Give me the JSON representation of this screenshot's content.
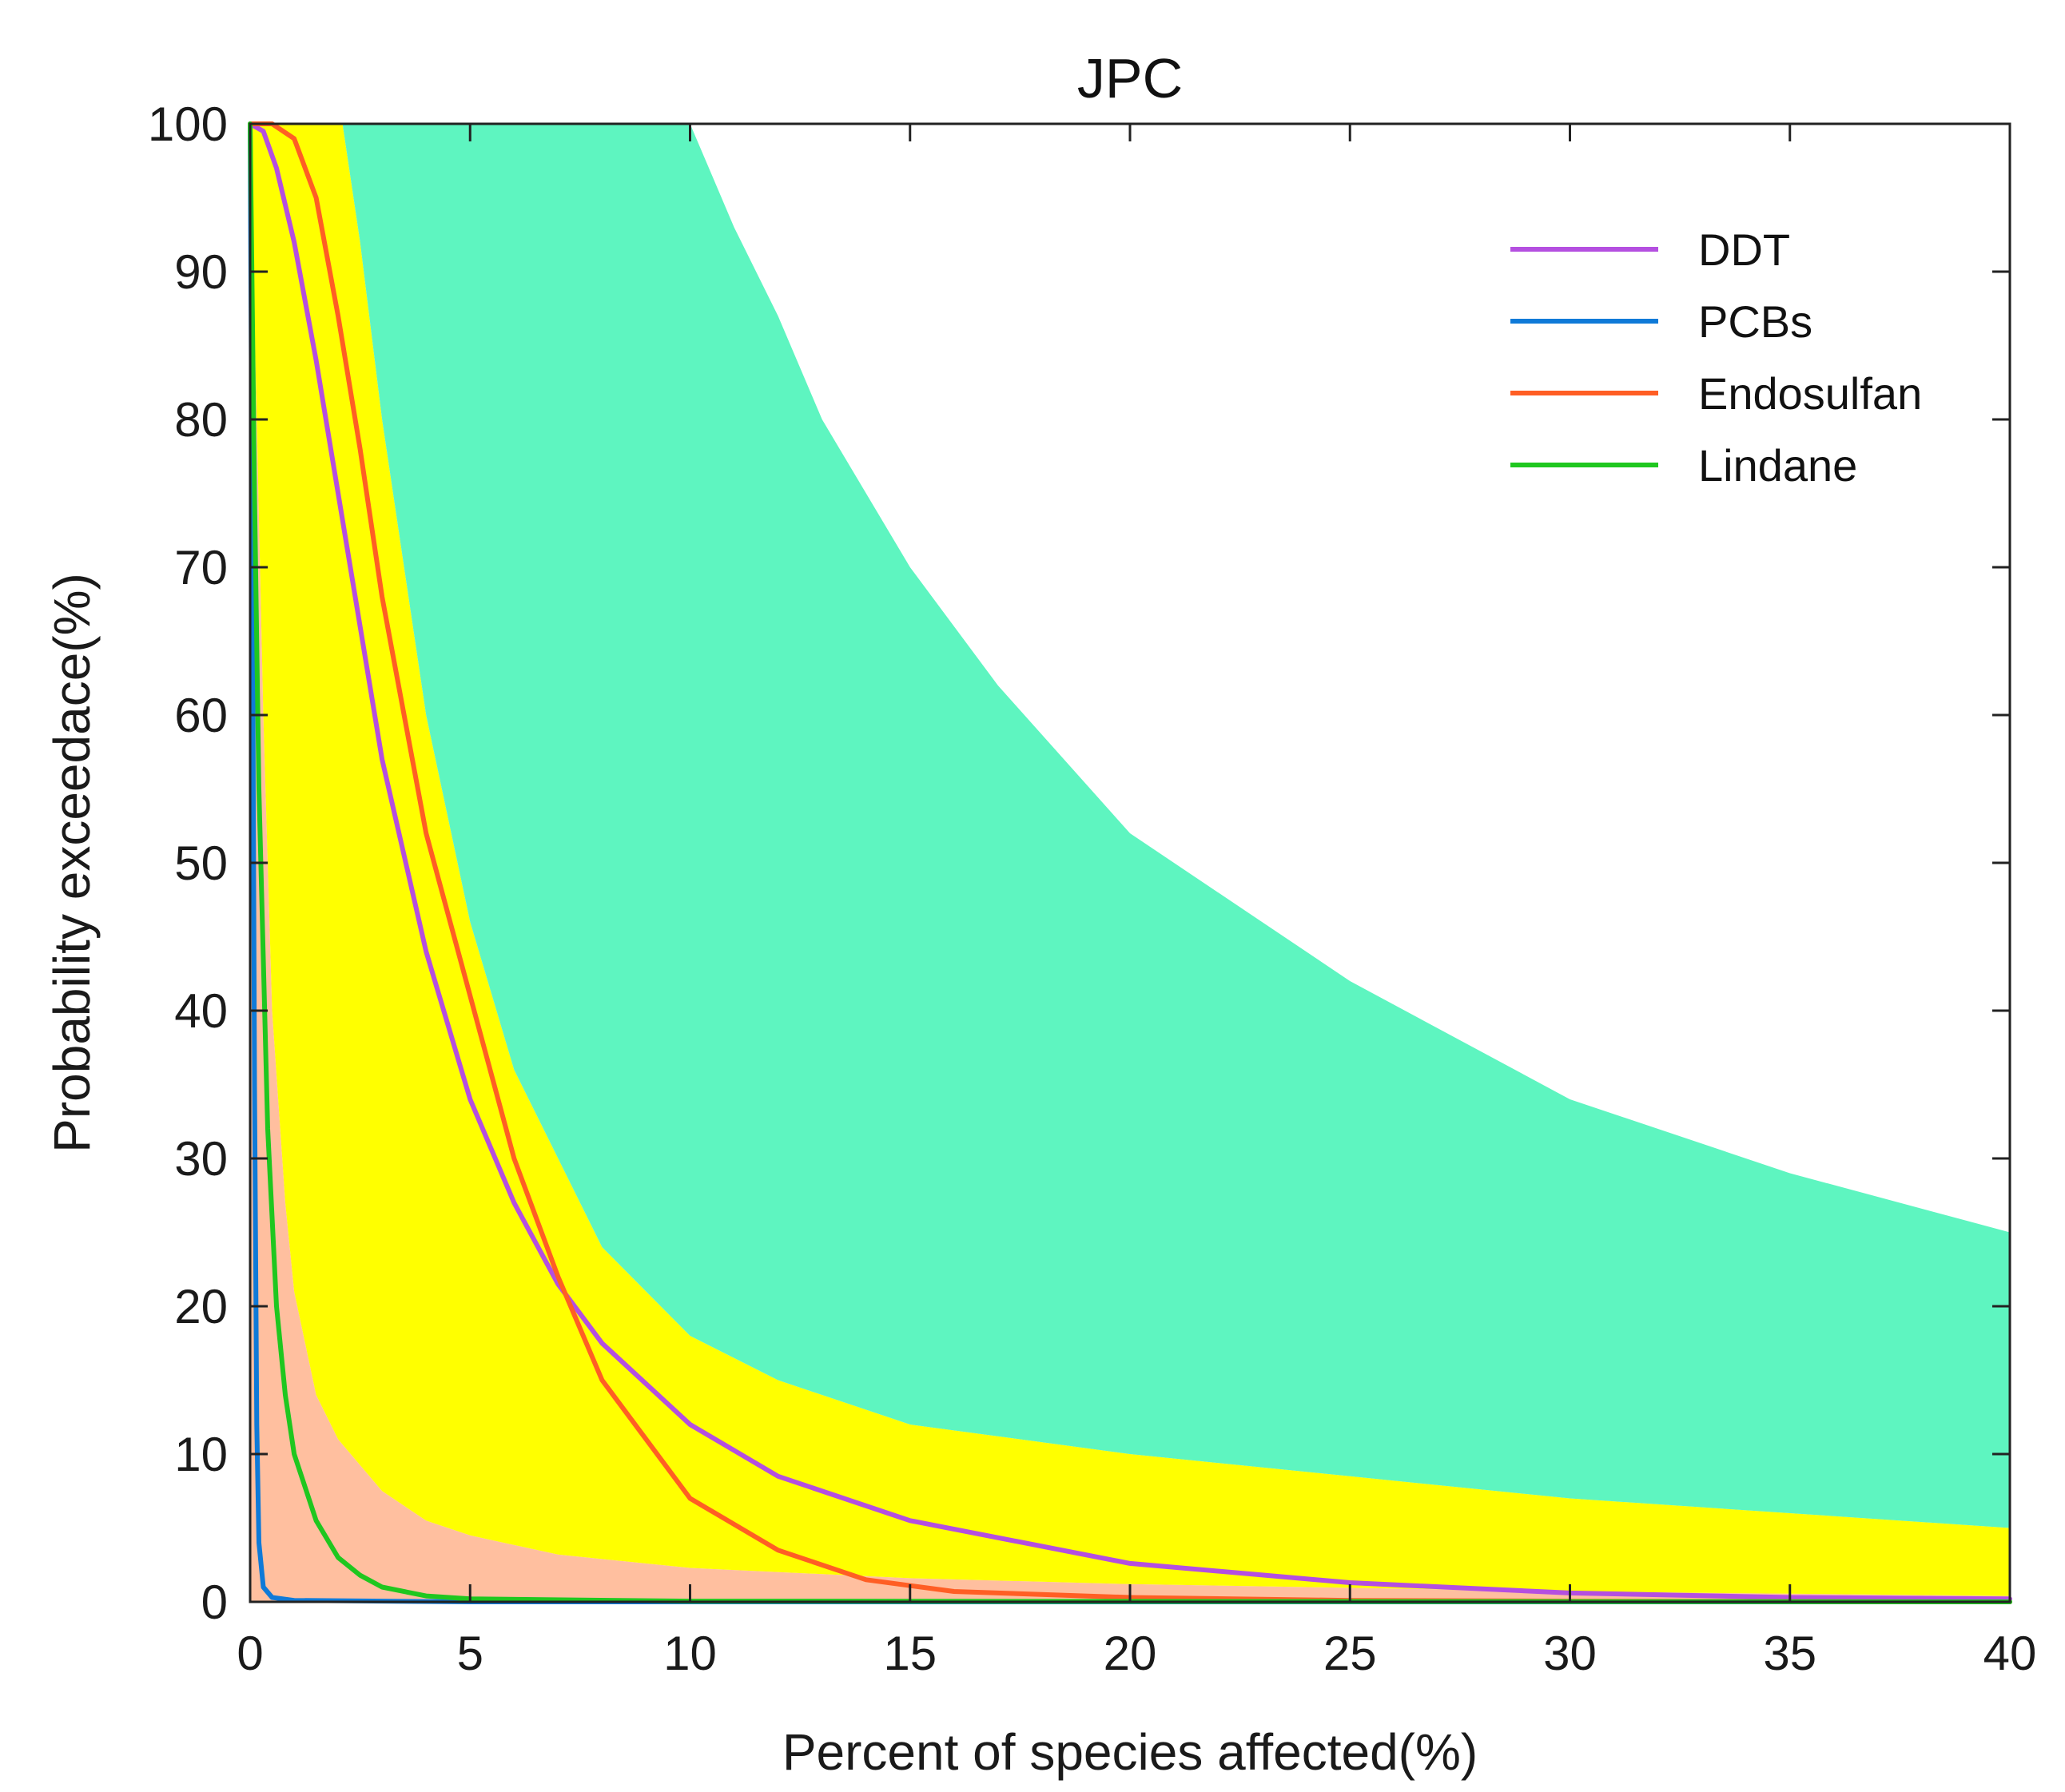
{
  "chart_data": {
    "type": "area",
    "title": "JPC",
    "xlabel": "Percent of species affected(%)",
    "ylabel": "Probability exceedace(%)",
    "xlim": [
      0,
      40
    ],
    "ylim": [
      0,
      100
    ],
    "xticks": [
      0,
      5,
      10,
      15,
      20,
      25,
      30,
      35,
      40
    ],
    "yticks": [
      0,
      10,
      20,
      30,
      40,
      50,
      60,
      70,
      80,
      90,
      100
    ],
    "legend_position": "top-right",
    "bands": [
      {
        "name": "teal-band",
        "color": "#5ef5c0",
        "lower": {
          "x": [
            2.1,
            2.5,
            3,
            4,
            5,
            6,
            8,
            10,
            12,
            15,
            20,
            25,
            30,
            35,
            40
          ],
          "y": [
            100,
            92,
            80,
            60,
            46,
            36,
            24,
            18,
            15,
            12,
            10,
            8.5,
            7,
            6,
            5
          ]
        },
        "upper": {
          "x": [
            10,
            11,
            12,
            13,
            15,
            17,
            20,
            25,
            30,
            35,
            40
          ],
          "y": [
            100,
            93,
            87,
            80,
            70,
            62,
            52,
            42,
            34,
            29,
            25
          ]
        }
      },
      {
        "name": "yellow-band",
        "color": "#ffff00",
        "lower": {
          "x": [
            0,
            0.3,
            0.5,
            0.8,
            1,
            1.5,
            2,
            3,
            4,
            5,
            7,
            10,
            15,
            20,
            30,
            40
          ],
          "y": [
            100,
            60,
            40,
            27,
            21,
            14,
            11,
            7.5,
            5.5,
            4.5,
            3.2,
            2.3,
            1.6,
            1.2,
            0.7,
            0.4
          ]
        },
        "upper": {
          "x": [
            0,
            2.1,
            2.5,
            3,
            4,
            5,
            6,
            8,
            10,
            12,
            15,
            20,
            25,
            30,
            35,
            40
          ],
          "y": [
            100,
            100,
            92,
            80,
            60,
            46,
            36,
            24,
            18,
            15,
            12,
            10,
            8.5,
            7,
            6,
            5
          ]
        }
      },
      {
        "name": "salmon-band",
        "color": "#ffbf9f",
        "lower": {
          "x": [
            0,
            40
          ],
          "y": [
            0,
            0
          ]
        },
        "upper": {
          "x": [
            0,
            0.3,
            0.5,
            0.8,
            1,
            1.5,
            2,
            3,
            4,
            5,
            7,
            10,
            15,
            20,
            30,
            40
          ],
          "y": [
            100,
            60,
            40,
            27,
            21,
            14,
            11,
            7.5,
            5.5,
            4.5,
            3.2,
            2.3,
            1.6,
            1.2,
            0.7,
            0.4
          ]
        }
      }
    ],
    "series": [
      {
        "name": "DDT",
        "color": "#b44fe0",
        "x": [
          0,
          0.3,
          0.6,
          1,
          1.5,
          2,
          3,
          4,
          5,
          6,
          7,
          8,
          10,
          12,
          15,
          20,
          25,
          30,
          35,
          40
        ],
        "y": [
          100,
          99.5,
          97,
          92,
          84,
          75,
          57,
          44,
          34,
          27,
          21.5,
          17.5,
          12,
          8.5,
          5.5,
          2.6,
          1.3,
          0.6,
          0.3,
          0.2
        ]
      },
      {
        "name": "PCBs",
        "color": "#0f7ad8",
        "x": [
          0,
          0.05,
          0.1,
          0.15,
          0.2,
          0.3,
          0.5,
          1,
          5,
          40
        ],
        "y": [
          100,
          70,
          35,
          12,
          4,
          1,
          0.3,
          0.1,
          0,
          0
        ]
      },
      {
        "name": "Endosulfan",
        "color": "#ff5e24",
        "x": [
          0,
          0.5,
          1,
          1.5,
          2,
          2.5,
          3,
          4,
          5,
          6,
          7,
          8,
          10,
          12,
          14,
          16,
          20,
          25,
          30,
          40
        ],
        "y": [
          100,
          100,
          99,
          95,
          87,
          78,
          68,
          52,
          41,
          30,
          22,
          15,
          7,
          3.5,
          1.5,
          0.7,
          0.3,
          0.1,
          0.05,
          0
        ]
      },
      {
        "name": "Lindane",
        "color": "#1fc71f",
        "x": [
          0,
          0.1,
          0.2,
          0.4,
          0.6,
          0.8,
          1,
          1.5,
          2,
          2.5,
          3,
          4,
          5,
          10,
          40
        ],
        "y": [
          100,
          75,
          55,
          32,
          20,
          14,
          10,
          5.5,
          3,
          1.8,
          1,
          0.4,
          0.2,
          0.05,
          0
        ]
      }
    ]
  }
}
